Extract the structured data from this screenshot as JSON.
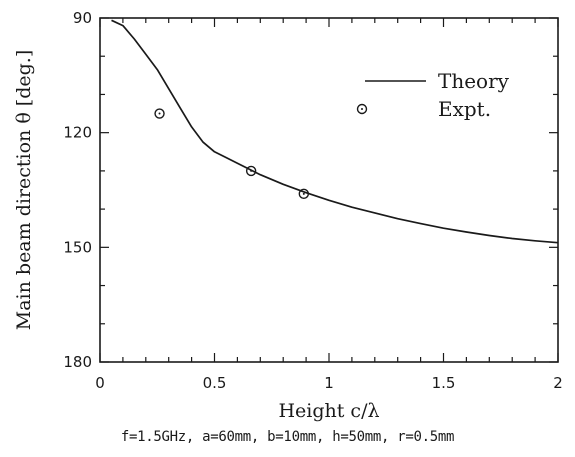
{
  "chart_data": {
    "type": "line",
    "xlabel": "Height c/λ",
    "ylabel": "Main beam direction θ [deg.]",
    "xlim": [
      0,
      2
    ],
    "ylim": [
      90,
      180
    ],
    "y_inverted": true,
    "x_ticks": [
      "0",
      "0.5",
      "1",
      "1.5",
      "2"
    ],
    "y_ticks": [
      "90",
      "120",
      "150",
      "180"
    ],
    "grid": false,
    "legend_position": "top-right",
    "series": [
      {
        "name": "Theory",
        "style": "solid-line",
        "x": [
          0.05,
          0.1,
          0.15,
          0.2,
          0.25,
          0.3,
          0.35,
          0.4,
          0.45,
          0.5,
          0.55,
          0.6,
          0.7,
          0.8,
          0.9,
          1.0,
          1.1,
          1.2,
          1.3,
          1.4,
          1.5,
          1.6,
          1.7,
          1.8,
          1.9,
          2.0
        ],
        "y": [
          90.6,
          92.0,
          95.5,
          99.5,
          103.5,
          108.5,
          113.5,
          118.5,
          122.5,
          125.0,
          126.5,
          128.0,
          131.0,
          133.5,
          135.7,
          137.7,
          139.5,
          141.0,
          142.5,
          143.8,
          145.0,
          146.0,
          146.9,
          147.7,
          148.3,
          148.8
        ]
      },
      {
        "name": "Expt.",
        "style": "open-circle",
        "x": [
          0.26,
          0.66,
          0.89
        ],
        "y": [
          115,
          130,
          136
        ]
      }
    ]
  },
  "caption": "f=1.5GHz, a=60mm, b=10mm, h=50mm, r=0.5mm",
  "colors": {
    "ink": "#1a1a1a",
    "background": "#ffffff"
  }
}
